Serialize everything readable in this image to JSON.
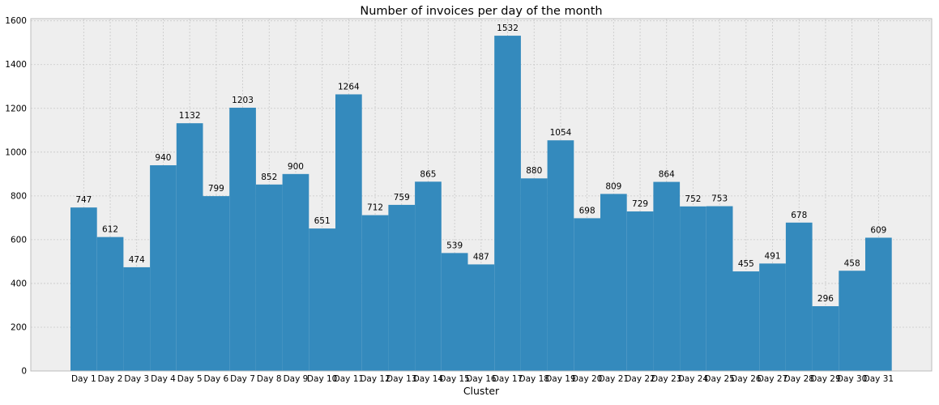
{
  "chart_data": {
    "type": "bar",
    "title": "Number of invoices per day of the month",
    "xlabel": "Cluster",
    "ylabel": "",
    "ylim": [
      0,
      1610
    ],
    "yticks": [
      0,
      200,
      400,
      600,
      800,
      1000,
      1200,
      1400,
      1600
    ],
    "grid": true,
    "categories": [
      "Day 1",
      "Day 2",
      "Day 3",
      "Day 4",
      "Day 5",
      "Day 6",
      "Day 7",
      "Day 8",
      "Day 9",
      "Day 10",
      "Day 11",
      "Day 12",
      "Day 13",
      "Day 14",
      "Day 15",
      "Day 16",
      "Day 17",
      "Day 18",
      "Day 19",
      "Day 20",
      "Day 21",
      "Day 22",
      "Day 23",
      "Day 24",
      "Day 25",
      "Day 26",
      "Day 27",
      "Day 28",
      "Day 29",
      "Day 30",
      "Day 31"
    ],
    "values": [
      747,
      612,
      474,
      940,
      1132,
      799,
      1203,
      852,
      900,
      651,
      1264,
      712,
      759,
      865,
      539,
      487,
      1532,
      880,
      1054,
      698,
      809,
      729,
      864,
      752,
      753,
      455,
      491,
      678,
      296,
      458,
      609
    ],
    "data_labels": [
      "747",
      "612",
      "474",
      "940",
      "1132",
      "799",
      "1203",
      "852",
      "900",
      "651",
      "1264",
      "712",
      "759",
      "865",
      "539",
      "487",
      "1532",
      "880",
      "1054",
      "698",
      "809",
      "729",
      "864",
      "752",
      "753",
      "455",
      "491",
      "678",
      "296",
      "458",
      "609"
    ],
    "colors": {
      "bar": "#348abd",
      "plot_background": "#eeeeee",
      "grid": "#c8c8c8",
      "spine": "#bcbcbc",
      "text": "#000000"
    }
  }
}
